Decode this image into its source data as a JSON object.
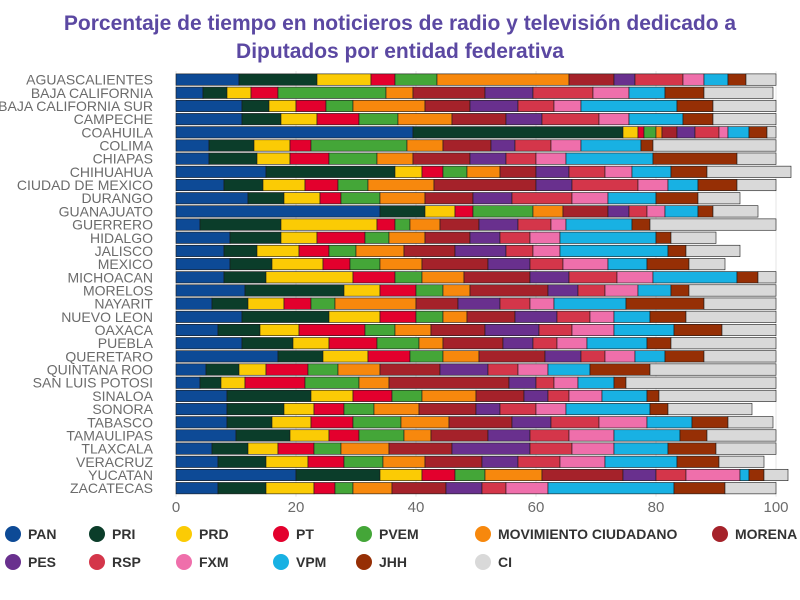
{
  "chart_data": {
    "type": "bar",
    "orientation": "horizontal",
    "stacked": true,
    "title": "Porcentaje de tiempo en noticieros de radio y televisión dedicado a Diputados por entidad federativa",
    "title_lines": [
      "Porcentaje de tiempo en noticieros de radio y televisión dedicado a",
      "Diputados por entidad federativa"
    ],
    "xlabel": "",
    "ylabel": "",
    "xlim": [
      0,
      100
    ],
    "xticks": [
      0,
      20,
      40,
      60,
      80,
      100
    ],
    "grid": true,
    "legend_position": "bottom",
    "categories": [
      "AGUASCALIENTES",
      "BAJA CALIFORNIA",
      "BAJA CALIFORNIA SUR",
      "CAMPECHE",
      "COAHUILA",
      "COLIMA",
      "CHIAPAS",
      "CHIHUAHUA",
      "CIUDAD DE MEXICO",
      "DURANGO",
      "GUANAJUATO",
      "GUERRERO",
      "HIDALGO",
      "JALISCO",
      "MEXICO",
      "MICHOACAN",
      "MORELOS",
      "NAYARIT",
      "NUEVO LEON",
      "OAXACA",
      "PUEBLA",
      "QUERETARO",
      "QUINTANA ROO",
      "SAN LUIS POTOSI",
      "SINALOA",
      "SONORA",
      "TABASCO",
      "TAMAULIPAS",
      "TLAXCALA",
      "VERACRUZ",
      "YUCATAN",
      "ZACATECAS"
    ],
    "series": [
      {
        "name": "PAN",
        "color": "#0d4a96",
        "values": [
          10.5,
          4.5,
          11,
          11,
          39.5,
          5.5,
          5.5,
          15,
          8,
          12,
          34,
          4,
          9,
          8,
          9,
          8,
          11.5,
          6,
          11,
          7,
          11,
          17,
          5,
          4,
          8.5,
          8.5,
          8.5,
          10,
          6,
          7,
          20,
          7
        ]
      },
      {
        "name": "PRI",
        "color": "#0b3d2a",
        "values": [
          13,
          4,
          4.5,
          6.5,
          35,
          7.5,
          8,
          21.5,
          6.5,
          6,
          7.5,
          13.5,
          8.5,
          5.5,
          7,
          7,
          16.5,
          6,
          14.5,
          7,
          8.5,
          7.5,
          5.5,
          3.5,
          14,
          9.5,
          7.5,
          9,
          6,
          8,
          14,
          8
        ]
      },
      {
        "name": "PRD",
        "color": "#fbcb05",
        "values": [
          9,
          4,
          4.5,
          6,
          2.5,
          6,
          5.5,
          4.5,
          7,
          6,
          5,
          16,
          6,
          7,
          8.5,
          14.5,
          6,
          6,
          8.5,
          6.5,
          6,
          7.5,
          4.5,
          4,
          7,
          5,
          6.5,
          6.5,
          5,
          7,
          7,
          8
        ]
      },
      {
        "name": "PT",
        "color": "#e3002d",
        "values": [
          4,
          4.5,
          5,
          7,
          1,
          3.5,
          6.5,
          3.5,
          5.5,
          3.5,
          3,
          3,
          8,
          5,
          4.5,
          7,
          6,
          4.5,
          6,
          11,
          8,
          7,
          7,
          10,
          6.5,
          5,
          7,
          5,
          6,
          6,
          5.5,
          3.5
        ]
      },
      {
        "name": "PVEM",
        "color": "#44a638",
        "values": [
          7,
          18,
          4.5,
          6.5,
          2,
          16,
          8,
          4,
          5,
          6.5,
          10,
          2.5,
          4,
          4.5,
          5,
          4.5,
          4.5,
          4,
          4.5,
          5,
          7,
          5.5,
          5,
          9,
          5,
          5,
          8,
          7.5,
          4.5,
          6.5,
          5,
          3
        ]
      },
      {
        "name": "MOVIMIENTO CIUDADANO",
        "color": "#f7880d",
        "values": [
          22,
          4.5,
          12,
          9,
          1,
          6,
          6,
          5.5,
          11,
          7.5,
          5,
          5,
          6,
          8,
          7,
          7,
          4.5,
          13.5,
          4,
          6,
          4,
          6,
          7,
          5,
          9,
          7.5,
          8,
          4.5,
          8,
          7,
          9.5,
          6.5
        ]
      },
      {
        "name": "MORENA",
        "color": "#a5222a",
        "values": [
          7.5,
          12,
          7.5,
          9,
          2.5,
          8,
          9.5,
          6,
          17,
          8,
          7.5,
          6.5,
          7.5,
          8.5,
          11,
          11,
          13,
          7,
          8,
          9,
          10,
          11,
          10,
          20,
          8,
          9.5,
          10.5,
          9.5,
          10.5,
          9.5,
          13.5,
          9
        ]
      },
      {
        "name": "PES",
        "color": "#69308e",
        "values": [
          3.5,
          8,
          8,
          6,
          3,
          4,
          6,
          5.5,
          6,
          6.5,
          3.5,
          6.5,
          5,
          8.5,
          7,
          6.5,
          5,
          7,
          7,
          9,
          5,
          6,
          8,
          4.5,
          4,
          4,
          6.5,
          7,
          13,
          6,
          5.5,
          6
        ]
      },
      {
        "name": "RSP",
        "color": "#d4364a",
        "values": [
          8,
          10,
          6,
          9.5,
          4,
          6,
          5,
          6,
          11,
          10,
          3,
          5.5,
          5,
          4.5,
          5.5,
          8,
          4.5,
          5,
          5.5,
          5.5,
          4,
          4,
          5,
          3,
          3.5,
          6,
          8,
          6.5,
          7,
          7,
          5,
          4
        ]
      },
      {
        "name": "FXM",
        "color": "#ef6fab",
        "values": [
          3.5,
          6,
          4.5,
          5,
          1.5,
          5,
          5,
          4.5,
          5,
          6,
          3,
          2.5,
          5,
          4.5,
          7.5,
          6,
          5.5,
          4,
          4,
          7,
          5,
          5,
          5,
          4,
          5.5,
          5,
          8,
          7.5,
          7,
          7.5,
          9,
          7
        ]
      },
      {
        "name": "VPM",
        "color": "#18b1e3",
        "values": [
          4,
          6,
          16,
          9,
          3.5,
          10,
          14.5,
          6.5,
          5,
          8,
          5.5,
          11,
          16,
          18,
          6.5,
          14,
          5.5,
          12,
          6,
          10,
          10,
          5,
          7,
          6,
          7.5,
          14,
          7.5,
          11,
          9,
          12,
          1.5,
          21
        ]
      },
      {
        "name": "JHH",
        "color": "#962f05",
        "values": [
          3,
          6.5,
          6,
          5,
          3,
          2,
          14,
          6,
          6.5,
          7,
          2.5,
          3,
          2.5,
          3,
          7,
          3.5,
          3,
          13,
          6,
          8,
          4,
          6.5,
          10,
          2,
          2,
          3,
          6,
          4.5,
          8,
          7,
          2.5,
          8.5
        ]
      },
      {
        "name": "CI",
        "color": "#d9d9d9",
        "values": [
          5,
          11.5,
          10.5,
          10.5,
          1.5,
          20.5,
          6.5,
          14,
          6.5,
          7,
          7.5,
          21,
          7.5,
          9,
          6,
          3,
          14.5,
          12,
          15,
          9,
          17.5,
          12,
          21,
          25,
          19.5,
          14,
          7.5,
          11.5,
          10,
          7.5,
          4,
          8.5
        ]
      }
    ]
  }
}
